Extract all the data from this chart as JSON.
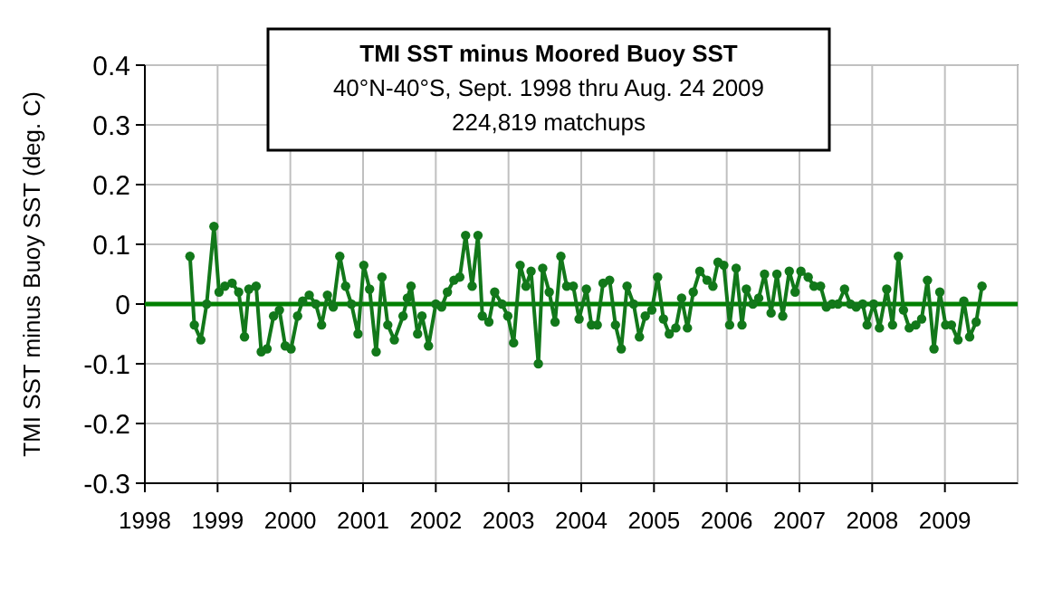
{
  "chart_data": {
    "type": "line",
    "title": "TMI SST minus Moored Buoy SST",
    "subtitle": "40°N-40°S, Sept. 1998 thru Aug. 24 2009",
    "annotations": [
      "224,819 matchups"
    ],
    "ylabel": "TMI SST minus Buoy SST (deg. C)",
    "xlim": [
      1998,
      2010
    ],
    "xticks": [
      1998,
      1999,
      2000,
      2001,
      2002,
      2003,
      2004,
      2005,
      2006,
      2007,
      2008,
      2009
    ],
    "ylim": [
      -0.3,
      0.4
    ],
    "yticks": [
      -0.3,
      -0.2,
      -0.1,
      0,
      0.1,
      0.2,
      0.3,
      0.4
    ],
    "grid": true,
    "marker": "circle",
    "line_style": "solid",
    "ref_lines": [
      {
        "axis": "y",
        "value": 0,
        "color": "#008000"
      }
    ],
    "series": [
      {
        "color": "#12781a",
        "x": [
          1998.62,
          1998.68,
          1998.77,
          1998.85,
          1998.95,
          1999.02,
          1999.1,
          1999.2,
          1999.29,
          1999.37,
          1999.43,
          1999.53,
          1999.6,
          1999.68,
          1999.77,
          1999.85,
          1999.93,
          2000.01,
          2000.1,
          2000.17,
          2000.26,
          2000.35,
          2000.43,
          2000.51,
          2000.59,
          2000.68,
          2000.76,
          2000.84,
          2000.93,
          2001.01,
          2001.09,
          2001.18,
          2001.26,
          2001.34,
          2001.43,
          2001.55,
          2001.61,
          2001.66,
          2001.75,
          2001.81,
          2001.9,
          2002.0,
          2002.08,
          2002.16,
          2002.25,
          2002.33,
          2002.41,
          2002.5,
          2002.58,
          2002.64,
          2002.73,
          2002.81,
          2002.91,
          2002.99,
          2003.07,
          2003.16,
          2003.24,
          2003.31,
          2003.41,
          2003.47,
          2003.56,
          2003.64,
          2003.72,
          2003.8,
          2003.89,
          2003.97,
          2004.07,
          2004.14,
          2004.22,
          2004.3,
          2004.39,
          2004.47,
          2004.55,
          2004.63,
          2004.72,
          2004.8,
          2004.88,
          2004.97,
          2005.05,
          2005.13,
          2005.21,
          2005.3,
          2005.38,
          2005.46,
          2005.54,
          2005.63,
          2005.73,
          2005.81,
          2005.88,
          2005.96,
          2006.04,
          2006.13,
          2006.21,
          2006.27,
          2006.36,
          2006.44,
          2006.52,
          2006.61,
          2006.69,
          2006.77,
          2006.86,
          2006.94,
          2007.02,
          2007.12,
          2007.2,
          2007.29,
          2007.37,
          2007.45,
          2007.53,
          2007.62,
          2007.7,
          2007.78,
          2007.87,
          2007.93,
          2008.02,
          2008.1,
          2008.2,
          2008.28,
          2008.36,
          2008.43,
          2008.51,
          2008.6,
          2008.68,
          2008.76,
          2008.85,
          2008.93,
          2009.01,
          2009.09,
          2009.18,
          2009.26,
          2009.34,
          2009.43,
          2009.51
        ],
        "values": [
          0.08,
          -0.035,
          -0.06,
          0,
          0.13,
          0.02,
          0.03,
          0.035,
          0.02,
          -0.055,
          0.025,
          0.03,
          -0.08,
          -0.075,
          -0.02,
          -0.01,
          -0.07,
          -0.075,
          -0.02,
          0.005,
          0.015,
          0,
          -0.035,
          0.015,
          -0.005,
          0.08,
          0.03,
          0,
          -0.05,
          0.065,
          0.025,
          -0.08,
          0.045,
          -0.035,
          -0.06,
          -0.02,
          0.01,
          0.03,
          -0.05,
          -0.02,
          -0.07,
          0,
          -0.005,
          0.02,
          0.04,
          0.045,
          0.115,
          0.03,
          0.115,
          -0.02,
          -0.03,
          0.02,
          0,
          -0.02,
          -0.065,
          0.065,
          0.03,
          0.055,
          -0.1,
          0.06,
          0.02,
          -0.03,
          0.08,
          0.03,
          0.03,
          -0.025,
          0.025,
          -0.035,
          -0.035,
          0.035,
          0.04,
          -0.035,
          -0.075,
          0.03,
          0,
          -0.055,
          -0.02,
          -0.01,
          0.045,
          -0.025,
          -0.05,
          -0.04,
          0.01,
          -0.04,
          0.02,
          0.055,
          0.04,
          0.03,
          0.07,
          0.065,
          -0.035,
          0.06,
          -0.035,
          0.025,
          0,
          0.01,
          0.05,
          -0.015,
          0.05,
          -0.02,
          0.055,
          0.02,
          0.055,
          0.045,
          0.03,
          0.03,
          -0.005,
          0,
          0,
          0.025,
          0,
          -0.005,
          0,
          -0.035,
          0,
          -0.04,
          0.025,
          -0.035,
          0.08,
          -0.01,
          -0.04,
          -0.035,
          -0.025,
          0.04,
          -0.075,
          0.02,
          -0.035,
          -0.035,
          -0.06,
          0.005,
          -0.055,
          -0.03,
          0.03
        ]
      }
    ]
  }
}
